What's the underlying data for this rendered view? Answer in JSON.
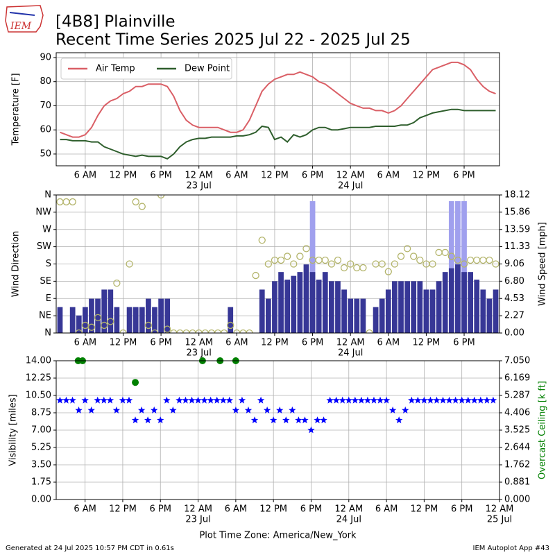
{
  "header": {
    "logo": "IEM",
    "title": "[4B8] Plainville",
    "subtitle": "Recent Time Series 2025 Jul 22 - 2025 Jul 25"
  },
  "footer": {
    "left": "Generated at 24 Jul 2025 10:57 PM CDT in 0.61s",
    "right": "IEM Autoplot App #43"
  },
  "chart_data": [
    {
      "type": "line",
      "ylabel": "Temperature [F]",
      "grid": true,
      "legend": "upper left",
      "xlim": [
        1.4,
        71.6
      ],
      "ylim": [
        45.1,
        92
      ],
      "yticks": [
        50,
        60,
        70,
        80,
        90
      ],
      "xticks": [
        {
          "value": 6,
          "label": "6 AM"
        },
        {
          "value": 12,
          "label": "12 PM"
        },
        {
          "value": 18,
          "label": "6 PM"
        },
        {
          "value": 24,
          "label": "12 AM",
          "date": "23 Jul"
        },
        {
          "value": 30,
          "label": "6 AM"
        },
        {
          "value": 36,
          "label": "12 PM"
        },
        {
          "value": 42,
          "label": "6 PM"
        },
        {
          "value": 48,
          "label": "12 AM",
          "date": "24 Jul"
        },
        {
          "value": 54,
          "label": "6 AM"
        },
        {
          "value": 60,
          "label": "12 PM"
        },
        {
          "value": 66,
          "label": "6 PM"
        }
      ],
      "x": [
        2,
        3,
        4,
        5,
        6,
        7,
        8,
        9,
        10,
        11,
        12,
        13,
        14,
        15,
        16,
        17,
        18,
        19,
        20,
        21,
        22,
        23,
        24,
        25,
        26,
        27,
        28,
        29,
        30,
        31,
        32,
        33,
        34,
        35,
        36,
        37,
        38,
        39,
        40,
        41,
        42,
        43,
        44,
        45,
        46,
        47,
        48,
        49,
        50,
        51,
        52,
        53,
        54,
        55,
        56,
        57,
        58,
        59,
        60,
        61,
        62,
        63,
        64,
        65,
        66,
        67,
        68,
        69,
        70,
        71
      ],
      "series": [
        {
          "name": "Air Temp",
          "color": "#da5f66",
          "values": [
            59,
            58,
            57,
            57,
            58,
            61,
            66,
            70,
            72,
            73,
            75,
            76,
            78,
            78,
            79,
            79,
            79,
            78,
            74,
            68,
            64,
            62,
            61,
            61,
            61,
            61,
            60,
            59,
            59,
            60,
            64,
            70,
            76,
            79,
            81,
            82,
            83,
            83,
            84,
            83,
            82,
            80,
            79,
            77,
            75,
            73,
            71,
            70,
            69,
            69,
            68,
            68,
            67,
            68,
            70,
            73,
            76,
            79,
            82,
            85,
            86,
            87,
            88,
            88,
            87,
            85,
            81,
            78,
            76,
            75
          ]
        },
        {
          "name": "Dew Point",
          "color": "#2e5e2c",
          "values": [
            56,
            56,
            55.5,
            55.5,
            55.5,
            55,
            55,
            53,
            52,
            51,
            50,
            49.5,
            49,
            49.5,
            49,
            49,
            49,
            48,
            50,
            53,
            55,
            56,
            56.5,
            56.5,
            57,
            57,
            57,
            57,
            57.5,
            57.5,
            58,
            59,
            61.5,
            61,
            56,
            57,
            55,
            58,
            57,
            58,
            60,
            61,
            61,
            60,
            60,
            60.5,
            61,
            61,
            61,
            61,
            61.5,
            61.5,
            61.5,
            61.5,
            62,
            62,
            63,
            65,
            66,
            67,
            67.5,
            68,
            68.5,
            68.5,
            68,
            68,
            68,
            68,
            68,
            68
          ]
        }
      ]
    },
    {
      "type": "combo",
      "ylabel": "Wind Direction",
      "y2label": "Wind Speed [mph]",
      "grid": true,
      "xlim": [
        1.4,
        71.6
      ],
      "ylim": [
        0,
        360
      ],
      "y2lim": [
        0,
        18.12
      ],
      "yticks": [
        {
          "value": 0,
          "label": "N"
        },
        {
          "value": 45,
          "label": "NE"
        },
        {
          "value": 90,
          "label": "E"
        },
        {
          "value": 135,
          "label": "SE"
        },
        {
          "value": 180,
          "label": "S"
        },
        {
          "value": 225,
          "label": "SW"
        },
        {
          "value": 270,
          "label": "W"
        },
        {
          "value": 315,
          "label": "NW"
        },
        {
          "value": 360,
          "label": "N"
        }
      ],
      "y2ticks": [
        {
          "value": 0,
          "label": "0.00"
        },
        2.27,
        4.53,
        {
          "value": 6.8,
          "label": "6.80"
        },
        9.06,
        11.33,
        13.59,
        15.86,
        18.12
      ],
      "xticks": [
        {
          "value": 6,
          "label": "6 AM"
        },
        {
          "value": 12,
          "label": "12 PM"
        },
        {
          "value": 18,
          "label": "6 PM"
        },
        {
          "value": 24,
          "label": "12 AM",
          "date": "23 Jul"
        },
        {
          "value": 30,
          "label": "6 AM"
        },
        {
          "value": 36,
          "label": "12 PM"
        },
        {
          "value": 42,
          "label": "6 PM"
        },
        {
          "value": 48,
          "label": "12 AM",
          "date": "24 Jul"
        },
        {
          "value": 54,
          "label": "6 AM"
        },
        {
          "value": 60,
          "label": "12 PM"
        },
        {
          "value": 66,
          "label": "6 PM"
        }
      ],
      "series": [
        {
          "kind": "bar",
          "axis": "y2",
          "color": "#a0a0ee",
          "x": [
            42,
            64,
            65,
            66
          ],
          "values": [
            17.3,
            17.3,
            17.3,
            17.3
          ]
        },
        {
          "kind": "bar",
          "axis": "y2",
          "color": "#373796",
          "x": [
            2,
            3,
            4,
            5,
            6,
            7,
            8,
            9,
            10,
            11,
            12,
            13,
            14,
            15,
            16,
            17,
            18,
            19,
            20,
            21,
            22,
            23,
            24,
            25,
            26,
            27,
            28,
            29,
            30,
            31,
            32,
            33,
            34,
            35,
            36,
            37,
            38,
            39,
            40,
            41,
            42,
            43,
            44,
            45,
            46,
            47,
            48,
            49,
            50,
            51,
            52,
            53,
            54,
            55,
            56,
            57,
            58,
            59,
            60,
            61,
            62,
            63,
            64,
            65,
            66,
            67,
            68,
            69,
            70,
            71
          ],
          "values": [
            3.4,
            0,
            3.4,
            2.3,
            3.4,
            4.5,
            4.5,
            5.7,
            5.7,
            3.4,
            0,
            3.4,
            3.4,
            3.4,
            4.5,
            3.4,
            4.5,
            4.5,
            0,
            0,
            0,
            0,
            0,
            0,
            0,
            0,
            0,
            3.4,
            0,
            0,
            0,
            0,
            5.7,
            4.5,
            6.8,
            8,
            7,
            7.5,
            8,
            9,
            8,
            7,
            8,
            6.8,
            6.8,
            5.7,
            4.5,
            4.5,
            4.5,
            0,
            3.4,
            4.5,
            5.7,
            6.8,
            6.8,
            6.8,
            6.8,
            6.8,
            5.7,
            5.7,
            6.8,
            8,
            8.5,
            9,
            8,
            8,
            7,
            5.7,
            4.5,
            5.7
          ]
        },
        {
          "kind": "ring",
          "axis": "y",
          "color": "#b3b46a",
          "x": [
            2,
            3,
            4,
            5,
            6,
            7,
            8,
            9,
            10,
            11,
            12,
            13,
            14,
            15,
            16,
            17,
            18,
            19,
            20,
            21,
            22,
            23,
            24,
            25,
            26,
            27,
            28,
            29,
            30,
            31,
            32,
            33,
            34,
            35,
            36,
            37,
            38,
            39,
            40,
            41,
            42,
            43,
            44,
            45,
            46,
            47,
            48,
            49,
            50,
            51,
            52,
            53,
            54,
            55,
            56,
            57,
            58,
            59,
            60,
            61,
            62,
            63,
            64,
            65,
            66,
            67,
            68,
            69,
            70,
            71
          ],
          "values": [
            342,
            342,
            342,
            0,
            20,
            15,
            40,
            20,
            30,
            130,
            0,
            180,
            342,
            330,
            20,
            0,
            360,
            10,
            0,
            0,
            0,
            0,
            0,
            0,
            0,
            0,
            0,
            20,
            0,
            0,
            0,
            150,
            242,
            180,
            190,
            190,
            200,
            180,
            200,
            220,
            190,
            190,
            190,
            180,
            190,
            170,
            180,
            170,
            170,
            0,
            180,
            180,
            160,
            180,
            200,
            220,
            200,
            190,
            180,
            180,
            210,
            210,
            200,
            190,
            180,
            190,
            190,
            190,
            190,
            180
          ]
        }
      ]
    },
    {
      "type": "combo",
      "ylabel": "Visibility [miles]",
      "y2label": "Overcast Ceiling [k ft]",
      "y2color": "#008000",
      "grid": true,
      "xlabel": "Plot Time Zone: America/New_York",
      "xlim": [
        1.4,
        72
      ],
      "ylim": [
        0,
        14
      ],
      "y2lim": [
        0,
        7.05
      ],
      "yticks": [
        {
          "value": 0,
          "label": "0.00"
        },
        1.75,
        {
          "value": 3.5,
          "label": "3.50"
        },
        {
          "value": 5.25,
          "label": "5.25"
        },
        {
          "value": 7,
          "label": "7.00"
        },
        8.75,
        {
          "value": 10.5,
          "label": "10.50"
        },
        12.25,
        {
          "value": 14,
          "label": "14.00"
        }
      ],
      "y2ticks": [
        {
          "value": 0,
          "label": "0.000"
        },
        0.881,
        1.762,
        2.644,
        3.525,
        4.406,
        5.287,
        6.169,
        {
          "value": 7.05,
          "label": "7.050"
        }
      ],
      "xticks": [
        {
          "value": 6,
          "label": "6 AM"
        },
        {
          "value": 12,
          "label": "12 PM"
        },
        {
          "value": 18,
          "label": "6 PM"
        },
        {
          "value": 24,
          "label": "12 AM",
          "date": "23 Jul"
        },
        {
          "value": 30,
          "label": "6 AM"
        },
        {
          "value": 36,
          "label": "12 PM"
        },
        {
          "value": 42,
          "label": "6 PM"
        },
        {
          "value": 48,
          "label": "12 AM",
          "date": "24 Jul"
        },
        {
          "value": 54,
          "label": "6 AM"
        },
        {
          "value": 60,
          "label": "12 PM"
        },
        {
          "value": 66,
          "label": "6 PM"
        },
        {
          "value": 72,
          "label": "12 AM",
          "date": "25 Jul"
        }
      ],
      "series": [
        {
          "kind": "star",
          "axis": "y",
          "color": "#0000ff",
          "x": [
            2,
            3,
            4,
            5,
            6,
            7,
            8,
            9,
            10,
            11,
            12,
            13,
            14,
            15,
            16,
            17,
            18,
            19,
            20,
            21,
            22,
            23,
            24,
            25,
            26,
            27,
            28,
            29,
            30,
            31,
            32,
            33,
            34,
            35,
            36,
            37,
            38,
            39,
            40,
            41,
            42,
            43,
            44,
            45,
            46,
            47,
            48,
            49,
            50,
            51,
            52,
            53,
            54,
            55,
            56,
            57,
            58,
            59,
            60,
            61,
            62,
            63,
            64,
            65,
            66,
            67,
            68,
            69,
            70,
            71
          ],
          "values": [
            10,
            10,
            10,
            9,
            10,
            9,
            10,
            10,
            10,
            9,
            10,
            10,
            8,
            9,
            8,
            9,
            8,
            10,
            9,
            10,
            10,
            10,
            10,
            10,
            10,
            10,
            10,
            10,
            9,
            10,
            9,
            8,
            10,
            9,
            8,
            9,
            8,
            9,
            8,
            8,
            7,
            8,
            8,
            10,
            10,
            10,
            10,
            10,
            10,
            10,
            10,
            10,
            10,
            9,
            8,
            9,
            10,
            10,
            10,
            10,
            10,
            10,
            10,
            10,
            10,
            10,
            10,
            10,
            10,
            10
          ]
        },
        {
          "kind": "dot",
          "axis": "y2",
          "color": "#008000",
          "x": [
            4.9,
            5.6,
            14,
            24.7,
            27.5,
            30
          ],
          "values": [
            7.05,
            7.05,
            5.95,
            7.05,
            7.05,
            7.05
          ]
        }
      ]
    }
  ]
}
